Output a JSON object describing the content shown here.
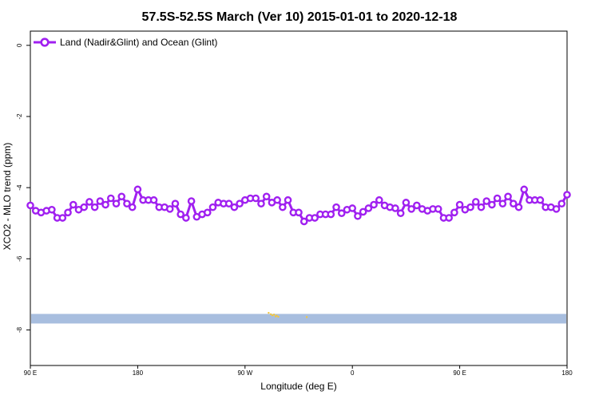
{
  "chart_data": {
    "type": "line",
    "title": "57.5S-52.5S March (Ver 10)   2015-01-01 to 2020-12-18",
    "xlabel": "Longitude (deg E)",
    "ylabel": "XCO2 - MLO trend (ppm)",
    "x_tick_labels": [
      "90 E",
      "180",
      "90 W",
      "0",
      "90 E",
      "180"
    ],
    "y_tick_labels": [
      "0",
      "-2",
      "-4",
      "-6",
      "-8"
    ],
    "y_ticks": [
      0,
      -2,
      -4,
      -6,
      -8
    ],
    "ylim": [
      -9.0,
      0.4
    ],
    "xlim": [
      0,
      100
    ],
    "grid": false,
    "legend_position": "top-left",
    "series": [
      {
        "name": "Land (Nadir&Glint) and Ocean (Glint)",
        "color": "#a020f0",
        "x": [
          0,
          1,
          2,
          3,
          4,
          5,
          6,
          7,
          8,
          9,
          10,
          11,
          12,
          13,
          14,
          15,
          16,
          17,
          18,
          19,
          20,
          21,
          22,
          23,
          24,
          25,
          26,
          27,
          28,
          29,
          30,
          31,
          32,
          33,
          34,
          35,
          36,
          37,
          38,
          39,
          40,
          41,
          42,
          43,
          44,
          45,
          46,
          47,
          48,
          49,
          50,
          51,
          52,
          53,
          54,
          55,
          56,
          57,
          58,
          59,
          60,
          61,
          62,
          63,
          64,
          65,
          66,
          67,
          68,
          69,
          70,
          71,
          72,
          73,
          74,
          75,
          76,
          77,
          78,
          79,
          80,
          81,
          82,
          83,
          84,
          85,
          86,
          87,
          88,
          89,
          90,
          91,
          92,
          93,
          94,
          95,
          96,
          97,
          98,
          99,
          100
        ],
        "values": [
          -4.5,
          -4.65,
          -4.7,
          -4.65,
          -4.62,
          -4.85,
          -4.85,
          -4.7,
          -4.48,
          -4.62,
          -4.55,
          -4.4,
          -4.55,
          -4.38,
          -4.48,
          -4.3,
          -4.45,
          -4.25,
          -4.45,
          -4.55,
          -4.05,
          -4.35,
          -4.35,
          -4.35,
          -4.55,
          -4.55,
          -4.6,
          -4.45,
          -4.75,
          -4.85,
          -4.38,
          -4.82,
          -4.75,
          -4.7,
          -4.55,
          -4.42,
          -4.45,
          -4.45,
          -4.55,
          -4.45,
          -4.35,
          -4.3,
          -4.3,
          -4.45,
          -4.25,
          -4.42,
          -4.35,
          -4.55,
          -4.35,
          -4.7,
          -4.7,
          -4.95,
          -4.85,
          -4.85,
          -4.75,
          -4.75,
          -4.75,
          -4.55,
          -4.72,
          -4.62,
          -4.58,
          -4.8,
          -4.68,
          -4.58,
          -4.48,
          -4.35,
          -4.5,
          -4.55,
          -4.58,
          -4.72,
          -4.42,
          -4.6,
          -4.5,
          -4.6,
          -4.65,
          -4.6,
          -4.6,
          -4.85,
          -4.85,
          -4.7,
          -4.48,
          -4.62,
          -4.55,
          -4.4,
          -4.55,
          -4.38,
          -4.48,
          -4.3,
          -4.45,
          -4.25,
          -4.45,
          -4.55,
          -4.05,
          -4.35,
          -4.35,
          -4.35,
          -4.55,
          -4.55,
          -4.6,
          -4.45,
          -4.2
        ]
      }
    ],
    "band": {
      "y_top": -7.55,
      "y_bottom": -7.82,
      "color": "#a8bedf"
    },
    "speckles": {
      "color": "#f2c640",
      "x": [
        44.4,
        44.8,
        45.1,
        45.4,
        45.7,
        45.9,
        46.2,
        51.5
      ],
      "y": [
        -7.52,
        -7.56,
        -7.59,
        -7.57,
        -7.62,
        -7.6,
        -7.63,
        -7.64
      ]
    }
  }
}
